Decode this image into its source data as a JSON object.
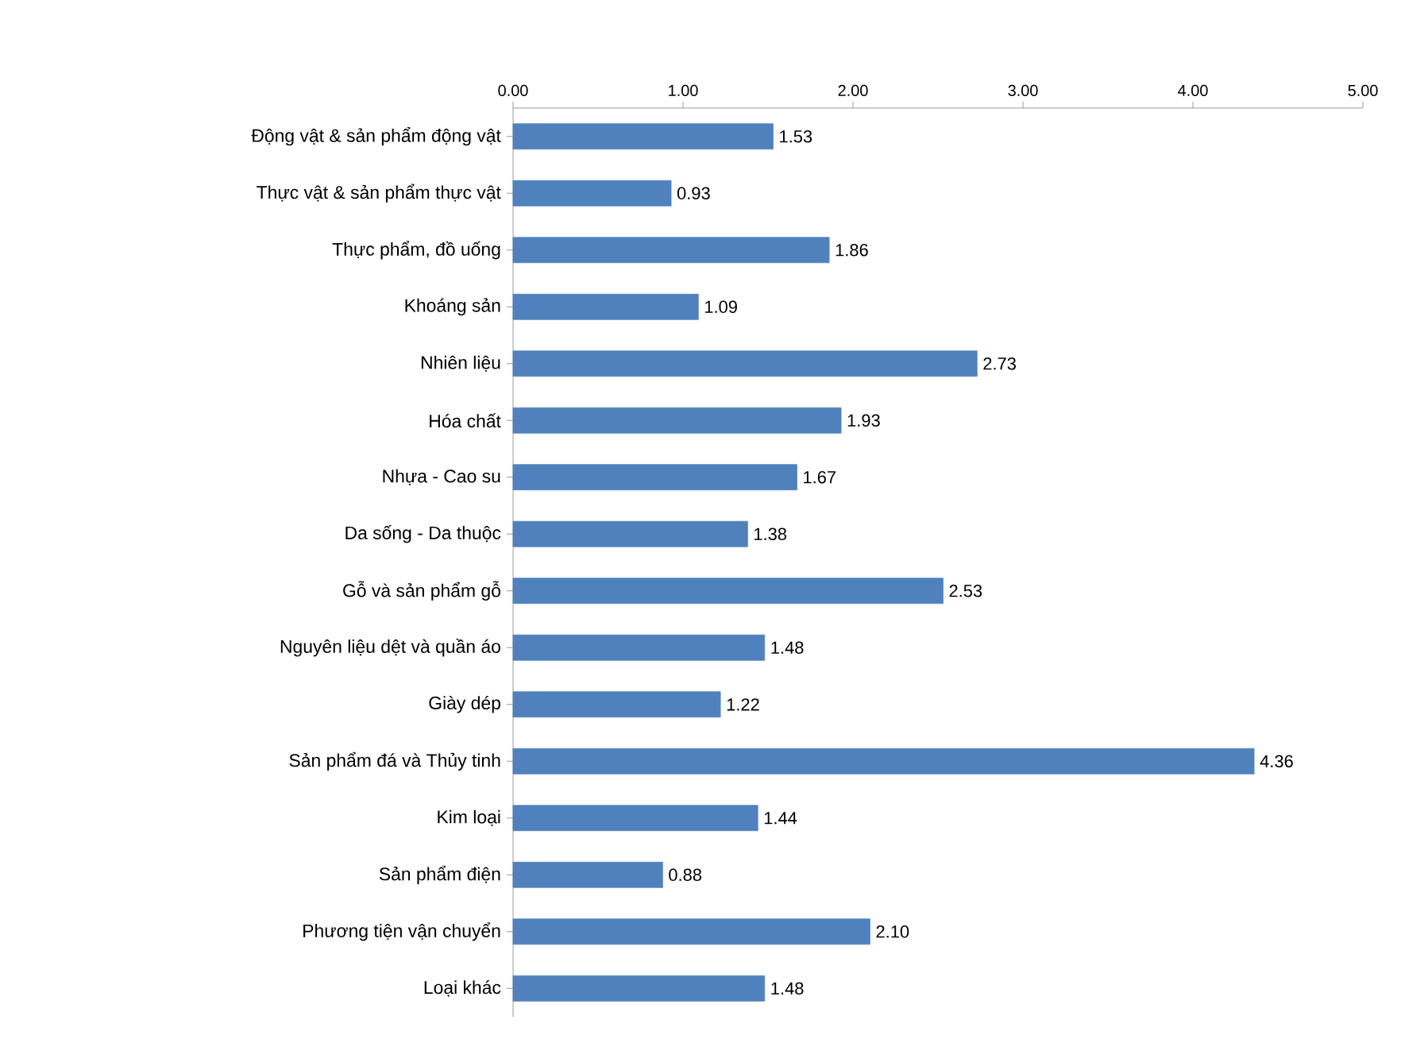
{
  "chart_data": {
    "type": "bar",
    "orientation": "horizontal",
    "categories": [
      "Động vật & sản phẩm động vật",
      "Thực vật & sản phẩm thực vật",
      "Thực phẩm, đồ uống",
      "Khoáng sản",
      "Nhiên liệu",
      "Hóa chất",
      "Nhựa - Cao su",
      "Da sống - Da thuộc",
      "Gỗ và sản phẩm gỗ",
      "Nguyên liệu dệt và quần áo",
      "Giày dép",
      "Sản phẩm đá và Thủy tinh",
      "Kim loại",
      "Sản phẩm điện",
      "Phương tiện vận chuyển",
      "Loại khác"
    ],
    "values": [
      1.53,
      0.93,
      1.86,
      1.09,
      2.73,
      1.93,
      1.67,
      1.38,
      2.53,
      1.48,
      1.22,
      4.36,
      1.44,
      0.88,
      2.1,
      1.48
    ],
    "value_labels": [
      "1.53",
      "0.93",
      "1.86",
      "1.09",
      "2.73",
      "1.93",
      "1.67",
      "1.38",
      "2.53",
      "1.48",
      "1.22",
      "4.36",
      "1.44",
      "0.88",
      "2.10",
      "1.48"
    ],
    "color": "#4f81bd",
    "xlim": [
      0,
      5
    ],
    "xticks": [
      {
        "value": 0,
        "label": "0.00"
      },
      {
        "value": 1,
        "label": "1.00"
      },
      {
        "value": 2,
        "label": "2.00"
      },
      {
        "value": 3,
        "label": "3.00"
      },
      {
        "value": 4,
        "label": "4.00"
      },
      {
        "value": 5,
        "label": "5.00"
      }
    ]
  }
}
